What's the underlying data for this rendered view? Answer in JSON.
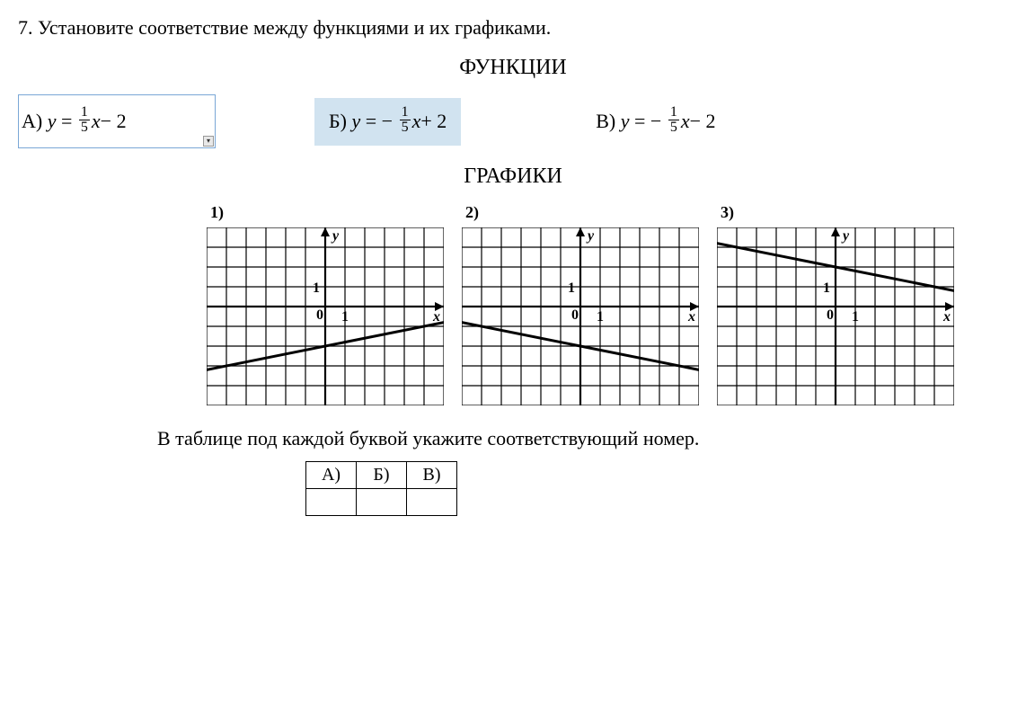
{
  "question": {
    "number": "7.",
    "text": "Установите соответствие между функциями и их графиками."
  },
  "headings": {
    "functions": "ФУНКЦИИ",
    "graphs": "ГРАФИКИ"
  },
  "functions": {
    "a": {
      "label": "А)",
      "var": "y",
      "eq": "=",
      "num": "1",
      "den": "5",
      "x": "x",
      "tail": " − 2",
      "sign": ""
    },
    "b": {
      "label": "Б)",
      "var": "y",
      "eq": "= −",
      "num": "1",
      "den": "5",
      "x": "x",
      "tail": " + 2"
    },
    "c": {
      "label": "В)",
      "var": "y",
      "eq": "= −",
      "num": "1",
      "den": "5",
      "x": "x",
      "tail": " − 2"
    }
  },
  "charts": {
    "grid": {
      "xmin": -6,
      "xmax": 6,
      "ymin": -5,
      "ymax": 4,
      "grid_color": "#000",
      "grid_width": 1.2,
      "axis_color": "#000",
      "axis_width": 2.2,
      "background": "#fff",
      "tick_label_1": "1",
      "tick_label_0": "0",
      "x_axis_label": "x",
      "y_axis_label": "y",
      "label_fontsize": 16
    },
    "line_color": "#000",
    "line_width": 3,
    "items": [
      {
        "label": "1)",
        "slope": 0.2,
        "intercept": -2
      },
      {
        "label": "2)",
        "slope": -0.2,
        "intercept": -2
      },
      {
        "label": "3)",
        "slope": -0.2,
        "intercept": 2
      }
    ]
  },
  "caption": "В таблице под каждой буквой укажите соответствующий номер.",
  "table_headers": [
    "А)",
    "Б)",
    "В)"
  ]
}
